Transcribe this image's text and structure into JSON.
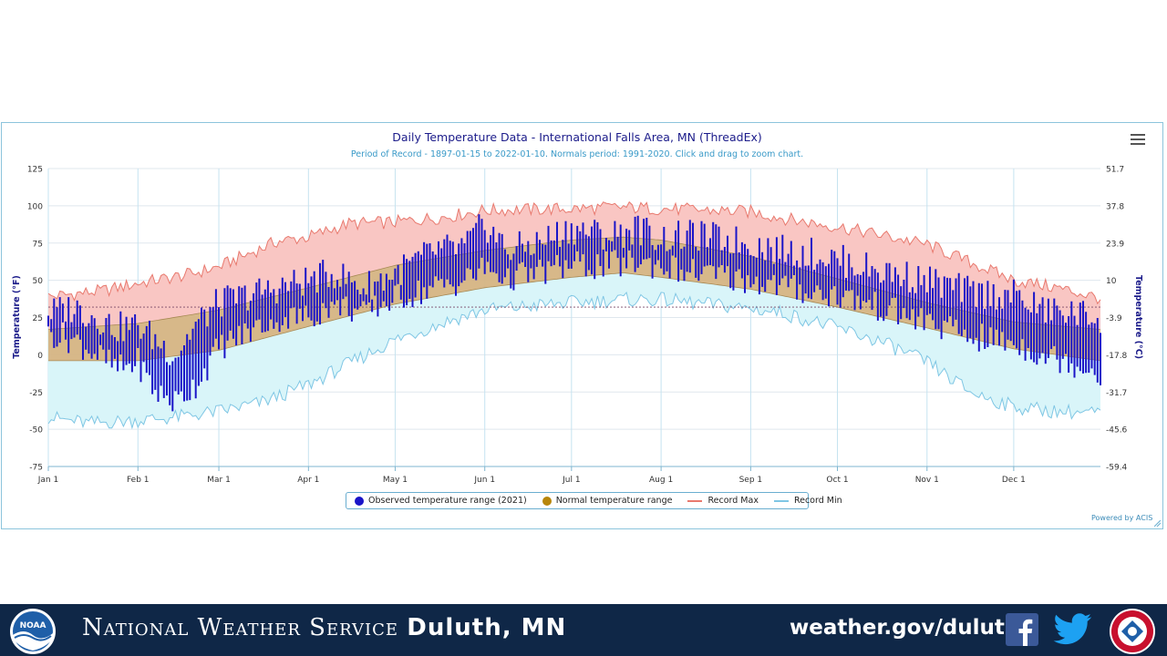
{
  "chart_data": {
    "type": "area",
    "title": "Daily Temperature Data - International Falls Area, MN (ThreadEx)",
    "subtitle": "Period of Record - 1897-01-15 to 2022-01-10. Normals period: 1991-2020. Click and drag to zoom chart.",
    "ylabel": "Temperature (°F)",
    "y2label": "Temperature (°C)",
    "ylim": [
      -75,
      125
    ],
    "y_ticks": [
      "125",
      "100",
      "75",
      "50",
      "25",
      "0",
      "-25",
      "-50",
      "-75"
    ],
    "y2_ticks": [
      "51.7",
      "37.8",
      "23.9",
      "10",
      "-3.9",
      "-17.8",
      "-31.7",
      "-45.6",
      "-59.4"
    ],
    "x_ticks": [
      "Jan 1",
      "Feb 1",
      "Mar 1",
      "Apr 1",
      "May 1",
      "Jun 1",
      "Jul 1",
      "Aug 1",
      "Sep 1",
      "Oct 1",
      "Nov 1",
      "Dec 1"
    ],
    "x_tick_days": [
      1,
      32,
      60,
      91,
      121,
      152,
      182,
      213,
      244,
      274,
      305,
      335
    ],
    "days_in_year": 365,
    "freezing_line_f": 32,
    "normal_high_key": {
      "day": [
        1,
        32,
        60,
        91,
        121,
        152,
        182,
        200,
        213,
        244,
        274,
        305,
        335,
        365
      ],
      "value": [
        17,
        21,
        30,
        45,
        60,
        70,
        77,
        79,
        77,
        66,
        51,
        35,
        22,
        17
      ]
    },
    "normal_low_key": {
      "day": [
        1,
        32,
        60,
        91,
        121,
        152,
        182,
        200,
        213,
        244,
        274,
        305,
        335,
        365
      ],
      "value": [
        -4,
        -4,
        3,
        19,
        34,
        45,
        52,
        55,
        52,
        44,
        32,
        18,
        4,
        -4
      ]
    },
    "record_max_key": {
      "day": [
        1,
        20,
        32,
        50,
        60,
        80,
        91,
        105,
        121,
        140,
        152,
        182,
        200,
        213,
        244,
        260,
        274,
        290,
        305,
        320,
        335,
        350,
        365
      ],
      "value": [
        39,
        43,
        48,
        54,
        59,
        76,
        79,
        88,
        89,
        93,
        97,
        98,
        99,
        98,
        96,
        90,
        86,
        80,
        74,
        62,
        50,
        45,
        38
      ]
    },
    "record_min_key": {
      "day": [
        1,
        15,
        32,
        45,
        60,
        75,
        91,
        105,
        121,
        140,
        152,
        170,
        182,
        200,
        213,
        244,
        255,
        274,
        290,
        305,
        320,
        335,
        350,
        365
      ],
      "value": [
        -42,
        -46,
        -44,
        -42,
        -38,
        -32,
        -20,
        -6,
        10,
        23,
        30,
        33,
        35,
        37,
        37,
        31,
        28,
        18,
        8,
        -5,
        -25,
        -35,
        -38,
        -39
      ]
    },
    "observed_2021_key": {
      "day": [
        1,
        10,
        18,
        25,
        32,
        38,
        45,
        52,
        60,
        70,
        80,
        91,
        100,
        110,
        121,
        135,
        145,
        152,
        160,
        170,
        182,
        195,
        205,
        213,
        225,
        244,
        255,
        265,
        274,
        285,
        300,
        305,
        320,
        335,
        345,
        355,
        365
      ],
      "high": [
        28,
        32,
        25,
        18,
        20,
        10,
        0,
        20,
        35,
        40,
        45,
        50,
        55,
        45,
        55,
        70,
        72,
        88,
        70,
        75,
        85,
        80,
        85,
        78,
        80,
        75,
        70,
        68,
        64,
        58,
        52,
        50,
        42,
        40,
        30,
        28,
        25
      ],
      "low": [
        15,
        10,
        0,
        -10,
        -5,
        -25,
        -32,
        -20,
        5,
        15,
        25,
        25,
        35,
        28,
        38,
        45,
        50,
        58,
        52,
        55,
        60,
        60,
        62,
        60,
        55,
        50,
        46,
        42,
        40,
        34,
        25,
        22,
        12,
        8,
        0,
        -5,
        -12
      ]
    },
    "grid": true,
    "legend_position": "bottom",
    "series": [
      {
        "name": "Observed temperature range (2021)",
        "color": "#1a14c8"
      },
      {
        "name": "Normal temperature range",
        "color": "#b8860b"
      },
      {
        "name": "Record Max",
        "color": "#e8796e"
      },
      {
        "name": "Record Min",
        "color": "#7fc6e4"
      }
    ]
  },
  "credits": "Powered by ACIS",
  "banner": {
    "org_prefix": "National Weather Service",
    "office": "Duluth, MN",
    "url": "weather.gov/duluth",
    "noaa_logo_text": "NOAA"
  },
  "colors": {
    "banner_bg": "#0f2747",
    "record_fill": "#f9c6c3",
    "normal_fill": "#d5b483",
    "min_fill": "#d9f5f9",
    "observed": "#1a14c8"
  }
}
